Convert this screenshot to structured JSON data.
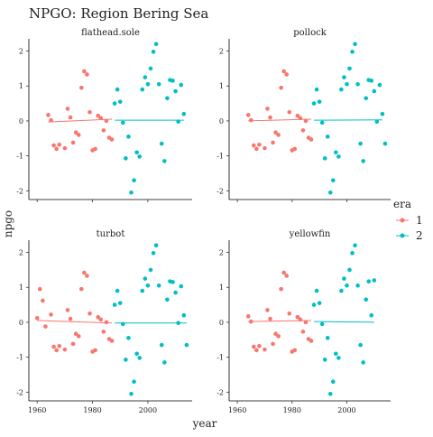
{
  "chart_data": {
    "type": "scatter",
    "title": "NPGO: Region Bering Sea",
    "xlabel": "year",
    "ylabel": "npgo",
    "xlim": [
      1957,
      2016
    ],
    "ylim": [
      -2.25,
      2.35
    ],
    "x_ticks": [
      1960,
      1980,
      2000
    ],
    "y_ticks": [
      -2,
      -1,
      0,
      1,
      2
    ],
    "grid": false,
    "legend": {
      "title": "era",
      "position": "right",
      "entries": [
        {
          "label": "1",
          "color": "#F8766D"
        },
        {
          "label": "2",
          "color": "#00BFC4"
        }
      ]
    },
    "colors": {
      "era1": "#F8766D",
      "era2": "#00BFC4"
    },
    "panels": [
      {
        "name": "flathead.sole",
        "points": [
          {
            "era": 1,
            "x": [
              1964,
              1965,
              1966,
              1967,
              1968,
              1970,
              1971,
              1972,
              1973,
              1974,
              1975,
              1976,
              1977,
              1978,
              1979,
              1980,
              1981,
              1982,
              1983,
              1984,
              1985,
              1986,
              1987
            ],
            "y": [
              0.17,
              0.02,
              -0.7,
              -0.8,
              -0.68,
              -0.78,
              0.35,
              0.1,
              -0.62,
              -0.33,
              -0.4,
              0.95,
              1.42,
              1.33,
              0.25,
              -0.84,
              -0.8,
              0.15,
              0.08,
              -0.27,
              0.0,
              -0.48,
              -0.53
            ]
          },
          {
            "era": 2,
            "x": [
              1988,
              1989,
              1990,
              1991,
              1992,
              1993,
              1994,
              1995,
              1996,
              1997,
              1998,
              1999,
              2000,
              2001,
              2002,
              2003,
              2004,
              2005,
              2006,
              2007,
              2008,
              2009,
              2010,
              2011,
              2012,
              2013
            ],
            "y": [
              0.5,
              0.9,
              0.55,
              -0.05,
              -1.07,
              -0.45,
              -2.05,
              -1.7,
              -0.9,
              -1.02,
              0.9,
              1.25,
              1.05,
              1.5,
              1.98,
              2.2,
              1.05,
              -0.65,
              -1.15,
              0.65,
              1.17,
              1.15,
              0.85,
              -0.02,
              1.03,
              0.2
            ]
          }
        ],
        "lines": [
          {
            "era": 1,
            "x": [
              1964,
              1987
            ],
            "y": [
              -0.03,
              0.05
            ]
          },
          {
            "era": 2,
            "x": [
              1988,
              2013
            ],
            "y": [
              0.02,
              0.02
            ]
          }
        ]
      },
      {
        "name": "pollock",
        "points": [
          {
            "era": 1,
            "x": [
              1964,
              1965,
              1966,
              1967,
              1968,
              1970,
              1971,
              1972,
              1973,
              1974,
              1975,
              1976,
              1977,
              1978,
              1979,
              1980,
              1981,
              1982,
              1983,
              1984,
              1985,
              1986,
              1987
            ],
            "y": [
              0.17,
              0.02,
              -0.7,
              -0.8,
              -0.68,
              -0.78,
              0.35,
              0.1,
              -0.62,
              -0.33,
              -0.4,
              0.95,
              1.42,
              1.33,
              0.25,
              -0.84,
              -0.8,
              0.15,
              0.08,
              -0.27,
              0.0,
              -0.48,
              -0.53
            ]
          },
          {
            "era": 2,
            "x": [
              1988,
              1989,
              1990,
              1991,
              1992,
              1993,
              1994,
              1995,
              1996,
              1997,
              1998,
              1999,
              2000,
              2001,
              2002,
              2003,
              2004,
              2005,
              2006,
              2007,
              2008,
              2009,
              2010,
              2011,
              2012,
              2013,
              2014
            ],
            "y": [
              0.5,
              0.9,
              0.55,
              -0.05,
              -1.07,
              -0.45,
              -2.05,
              -1.7,
              -0.9,
              -1.02,
              0.9,
              1.25,
              1.05,
              1.5,
              1.98,
              2.2,
              1.05,
              -0.65,
              -1.15,
              0.65,
              1.17,
              1.15,
              0.85,
              -0.02,
              1.03,
              0.2,
              -0.65
            ]
          }
        ],
        "lines": [
          {
            "era": 1,
            "x": [
              1964,
              1987
            ],
            "y": [
              0.0,
              0.05
            ]
          },
          {
            "era": 2,
            "x": [
              1988,
              2013
            ],
            "y": [
              0.02,
              0.03
            ]
          }
        ]
      },
      {
        "name": "turbot",
        "points": [
          {
            "era": 1,
            "x": [
              1960,
              1961,
              1962,
              1963,
              1965,
              1966,
              1967,
              1968,
              1970,
              1971,
              1972,
              1973,
              1974,
              1975,
              1976,
              1977,
              1978,
              1979,
              1980,
              1981,
              1982,
              1983,
              1984,
              1985,
              1986,
              1987
            ],
            "y": [
              0.12,
              0.95,
              0.62,
              -0.12,
              0.22,
              -0.7,
              -0.8,
              -0.68,
              -0.78,
              0.35,
              0.1,
              -0.62,
              -0.33,
              -0.4,
              0.95,
              1.42,
              1.33,
              0.25,
              -0.84,
              -0.8,
              0.15,
              0.08,
              -0.27,
              0.0,
              -0.48,
              -0.53
            ]
          },
          {
            "era": 2,
            "x": [
              1988,
              1989,
              1990,
              1991,
              1992,
              1993,
              1994,
              1995,
              1996,
              1997,
              1998,
              1999,
              2000,
              2001,
              2002,
              2003,
              2004,
              2005,
              2006,
              2007,
              2008,
              2009,
              2010,
              2011,
              2012,
              2013,
              2014
            ],
            "y": [
              0.5,
              0.9,
              0.55,
              -0.05,
              -1.07,
              -0.45,
              -2.05,
              -1.7,
              -0.9,
              -1.02,
              0.9,
              1.25,
              1.05,
              1.5,
              1.98,
              2.2,
              1.05,
              -0.65,
              -1.15,
              0.65,
              1.17,
              1.15,
              0.85,
              -0.02,
              1.03,
              0.2,
              -0.65
            ]
          }
        ],
        "lines": [
          {
            "era": 1,
            "x": [
              1960,
              1987
            ],
            "y": [
              0.05,
              -0.02
            ]
          },
          {
            "era": 2,
            "x": [
              1988,
              2014
            ],
            "y": [
              -0.02,
              -0.02
            ]
          }
        ]
      },
      {
        "name": "yellowfin",
        "points": [
          {
            "era": 1,
            "x": [
              1964,
              1965,
              1966,
              1967,
              1968,
              1970,
              1971,
              1972,
              1973,
              1974,
              1975,
              1976,
              1977,
              1978,
              1979,
              1980,
              1981,
              1982,
              1983,
              1984,
              1985,
              1986,
              1987
            ],
            "y": [
              0.17,
              0.02,
              -0.7,
              -0.8,
              -0.68,
              -0.78,
              0.35,
              0.1,
              -0.62,
              -0.33,
              -0.4,
              0.95,
              1.42,
              1.33,
              0.25,
              -0.84,
              -0.8,
              0.15,
              0.08,
              -0.27,
              0.0,
              -0.48,
              -0.53
            ]
          },
          {
            "era": 2,
            "x": [
              1988,
              1989,
              1990,
              1991,
              1992,
              1993,
              1994,
              1995,
              1996,
              1997,
              1998,
              1999,
              2000,
              2001,
              2002,
              2003,
              2004,
              2005,
              2006,
              2007,
              2008,
              2009,
              2010
            ],
            "y": [
              0.5,
              0.9,
              0.55,
              -0.05,
              -1.07,
              -0.45,
              -2.05,
              -1.7,
              -0.9,
              -1.02,
              0.9,
              1.25,
              1.05,
              1.5,
              1.98,
              2.2,
              1.05,
              -0.65,
              -1.15,
              0.65,
              1.17,
              0.2,
              1.2
            ]
          }
        ],
        "lines": [
          {
            "era": 1,
            "x": [
              1964,
              1987
            ],
            "y": [
              0.02,
              0.05
            ]
          },
          {
            "era": 2,
            "x": [
              1988,
              2010
            ],
            "y": [
              0.02,
              0.0
            ]
          }
        ]
      }
    ]
  }
}
